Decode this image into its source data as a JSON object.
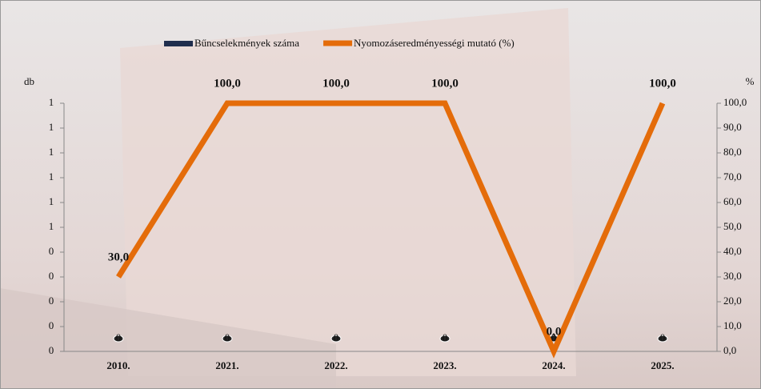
{
  "chart_data": {
    "type": "bar_line",
    "categories": [
      "2010.",
      "2021.",
      "2022.",
      "2023.",
      "2024.",
      "2025."
    ],
    "y_label": "db",
    "y2_label": "%",
    "series": [
      {
        "name": "Bűncselekmények száma",
        "type": "bar",
        "color": "#1f2d4d",
        "values": [
          0,
          0,
          0,
          0,
          0,
          0
        ]
      },
      {
        "name": "Nyomozáseredményességi mutató (%)",
        "type": "line",
        "axis": "y2",
        "color": "#e46c0a",
        "values": [
          30,
          100,
          100,
          100,
          0,
          100
        ],
        "value_labels": [
          "30,0",
          "100,0",
          "100,0",
          "100,0",
          "0,0",
          "100,0"
        ]
      }
    ],
    "ylim": [
      0,
      1
    ],
    "yticks": [
      {
        "value": 0,
        "label": "0"
      },
      {
        "value": 0.1,
        "label": "0"
      },
      {
        "value": 0.2,
        "label": "0"
      },
      {
        "value": 0.3,
        "label": "0"
      },
      {
        "value": 0.4,
        "label": "0"
      },
      {
        "value": 0.5,
        "label": "1"
      },
      {
        "value": 0.6,
        "label": "1"
      },
      {
        "value": 0.7,
        "label": "1"
      },
      {
        "value": 0.8,
        "label": "1"
      },
      {
        "value": 0.9,
        "label": "1"
      },
      {
        "value": 1,
        "label": "1"
      }
    ],
    "y2lim": [
      0,
      100
    ],
    "y2ticks": [
      {
        "value": 0,
        "label": "0,0"
      },
      {
        "value": 10,
        "label": "10,0"
      },
      {
        "value": 20,
        "label": "20,0"
      },
      {
        "value": 30,
        "label": "30,0"
      },
      {
        "value": 40,
        "label": "40,0"
      },
      {
        "value": 50,
        "label": "50,0"
      },
      {
        "value": 60,
        "label": "60,0"
      },
      {
        "value": 70,
        "label": "70,0"
      },
      {
        "value": 80,
        "label": "80,0"
      },
      {
        "value": 90,
        "label": "90,0"
      },
      {
        "value": 100,
        "label": "100,0"
      }
    ]
  }
}
